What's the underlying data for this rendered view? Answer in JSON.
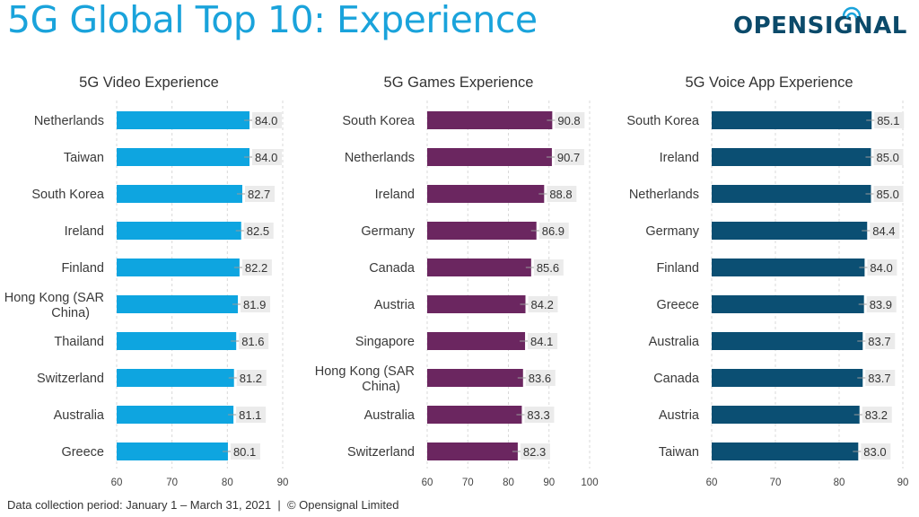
{
  "header": {
    "title": "5G Global Top 10: Experience",
    "logo_text": "OPENSIGNAL"
  },
  "footer": {
    "text": "Data collection period: January 1 – March 31, 2021  |  © Opensignal Limited"
  },
  "colors": {
    "title": "#1aa3db",
    "video": "#0ea5e0",
    "games": "#6b2660",
    "voice": "#0b4f73",
    "label_bg": "#ebebeb",
    "grid": "#d9d9d9"
  },
  "chart_data": [
    {
      "type": "bar",
      "orientation": "horizontal",
      "title": "5G Video Experience",
      "categories": [
        "Netherlands",
        "Taiwan",
        "South Korea",
        "Ireland",
        "Finland",
        "Hong Kong (SAR China)",
        "Thailand",
        "Switzerland",
        "Australia",
        "Greece"
      ],
      "values": [
        84.0,
        84.0,
        82.7,
        82.5,
        82.2,
        81.9,
        81.6,
        81.2,
        81.1,
        80.1
      ],
      "xlim": [
        60,
        90
      ],
      "xticks": [
        60,
        70,
        80,
        90
      ],
      "grid": true,
      "color_key": "video"
    },
    {
      "type": "bar",
      "orientation": "horizontal",
      "title": "5G Games Experience",
      "categories": [
        "South Korea",
        "Netherlands",
        "Ireland",
        "Germany",
        "Canada",
        "Austria",
        "Singapore",
        "Hong Kong (SAR China)",
        "Australia",
        "Switzerland"
      ],
      "values": [
        90.8,
        90.7,
        88.8,
        86.9,
        85.6,
        84.2,
        84.1,
        83.6,
        83.3,
        82.3
      ],
      "xlim": [
        60,
        100
      ],
      "xticks": [
        60,
        70,
        80,
        90,
        100
      ],
      "grid": true,
      "color_key": "games"
    },
    {
      "type": "bar",
      "orientation": "horizontal",
      "title": "5G Voice App Experience",
      "categories": [
        "South Korea",
        "Ireland",
        "Netherlands",
        "Germany",
        "Finland",
        "Greece",
        "Australia",
        "Canada",
        "Austria",
        "Taiwan"
      ],
      "values": [
        85.1,
        85.0,
        85.0,
        84.4,
        84.0,
        83.9,
        83.7,
        83.7,
        83.2,
        83.0
      ],
      "xlim": [
        60,
        90
      ],
      "xticks": [
        60,
        70,
        80,
        90
      ],
      "grid": true,
      "color_key": "voice"
    }
  ]
}
